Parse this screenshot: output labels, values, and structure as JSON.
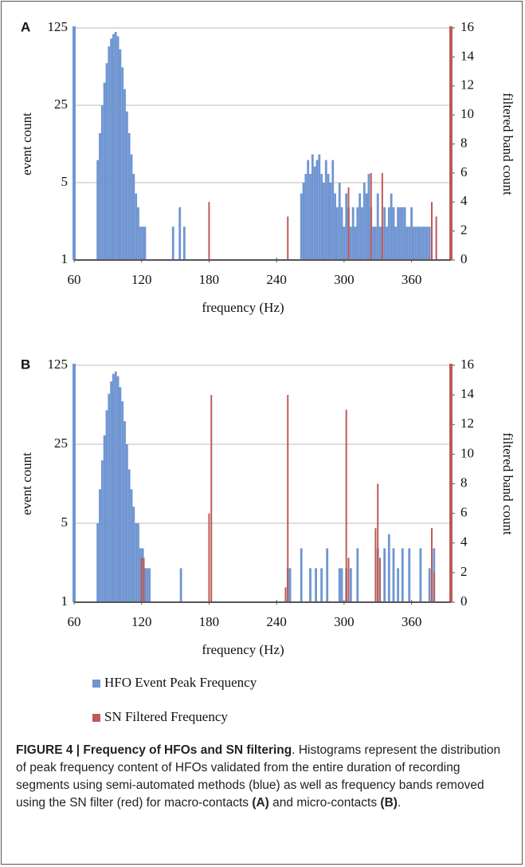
{
  "chart_data": [
    {
      "type": "bar",
      "label": "A",
      "ylabel": "event count",
      "y2label": "filtered band count",
      "xlabel": "frequency (Hz)",
      "yscale": "log",
      "grid": true,
      "xlim": [
        60,
        395
      ],
      "xticks": [
        60,
        120,
        180,
        240,
        300,
        360
      ],
      "ylim": [
        1,
        125
      ],
      "yticks": [
        1,
        5,
        25,
        125
      ],
      "y2lim": [
        0,
        16
      ],
      "y2ticks": [
        0,
        2,
        4,
        6,
        8,
        10,
        12,
        14,
        16
      ],
      "series": [
        {
          "name": "HFO Event Peak Frequency",
          "color": "#7096d2",
          "x": [
            81,
            83,
            85,
            87,
            89,
            91,
            93,
            95,
            97,
            99,
            101,
            103,
            105,
            107,
            109,
            111,
            113,
            115,
            117,
            119,
            121,
            123,
            148,
            154,
            158,
            262,
            264,
            266,
            268,
            270,
            272,
            274,
            276,
            278,
            280,
            282,
            284,
            286,
            288,
            290,
            292,
            294,
            296,
            298,
            300,
            302,
            304,
            306,
            308,
            310,
            312,
            314,
            316,
            318,
            320,
            322,
            324,
            326,
            328,
            330,
            332,
            334,
            336,
            338,
            340,
            342,
            344,
            346,
            348,
            350,
            352,
            354,
            356,
            358,
            360,
            362,
            364,
            366,
            368,
            370,
            372,
            374,
            376
          ],
          "values": [
            8,
            14,
            25,
            40,
            60,
            85,
            100,
            110,
            115,
            105,
            80,
            55,
            35,
            22,
            14,
            9,
            6,
            4,
            3,
            2,
            2,
            2,
            2,
            3,
            2,
            4,
            5,
            6,
            8,
            6,
            9,
            7,
            8,
            9,
            6,
            5,
            8,
            6,
            5,
            8,
            4,
            3,
            5,
            3,
            2,
            4,
            3,
            2,
            3,
            2,
            3,
            4,
            3,
            5,
            4,
            6,
            3,
            2,
            2,
            4,
            2,
            2,
            3,
            2,
            3,
            4,
            3,
            2,
            3,
            3,
            3,
            3,
            2,
            2,
            3,
            2,
            2,
            2,
            2,
            2,
            2,
            2,
            2
          ]
        },
        {
          "name": "SN Filtered Frequency",
          "color": "#be5a55",
          "axis": "y2",
          "x": [
            180,
            250,
            304,
            324,
            334,
            378,
            382
          ],
          "values": [
            4,
            3,
            5,
            6,
            6,
            4,
            3
          ]
        }
      ]
    },
    {
      "type": "bar",
      "label": "B",
      "ylabel": "event count",
      "y2label": "filtered band count",
      "xlabel": "frequency (Hz)",
      "yscale": "log",
      "grid": true,
      "xlim": [
        60,
        395
      ],
      "xticks": [
        60,
        120,
        180,
        240,
        300,
        360
      ],
      "ylim": [
        1,
        125
      ],
      "yticks": [
        1,
        5,
        25,
        125
      ],
      "y2lim": [
        0,
        16
      ],
      "y2ticks": [
        0,
        2,
        4,
        6,
        8,
        10,
        12,
        14,
        16
      ],
      "series": [
        {
          "name": "HFO Event Peak Frequency",
          "color": "#7096d2",
          "x": [
            81,
            83,
            85,
            87,
            89,
            91,
            93,
            95,
            97,
            99,
            101,
            103,
            105,
            107,
            109,
            111,
            113,
            115,
            117,
            119,
            121,
            123,
            125,
            127,
            155,
            250,
            252,
            262,
            270,
            275,
            280,
            285,
            296,
            298,
            302,
            306,
            312,
            330,
            336,
            340,
            344,
            348,
            352,
            358,
            368,
            376,
            380
          ],
          "values": [
            5,
            10,
            18,
            30,
            50,
            70,
            90,
            105,
            110,
            100,
            80,
            60,
            40,
            25,
            15,
            10,
            7,
            5,
            5,
            3,
            3,
            2,
            2,
            2,
            2,
            2,
            2,
            3,
            2,
            2,
            2,
            3,
            2,
            2,
            2,
            2,
            3,
            3,
            3,
            4,
            3,
            2,
            3,
            3,
            3,
            2,
            3
          ]
        },
        {
          "name": "SN Filtered Frequency",
          "color": "#be5a55",
          "axis": "y2",
          "x": [
            120,
            122,
            180,
            182,
            248,
            250,
            302,
            304,
            328,
            330,
            332,
            378,
            380
          ],
          "values": [
            3,
            3,
            6,
            14,
            1,
            14,
            13,
            3,
            5,
            8,
            3,
            5,
            2
          ]
        }
      ]
    }
  ],
  "caption": [
    {
      "text": "FIGURE 4 | Frequency of HFOs and SN filtering",
      "bold": true
    },
    {
      "text": ". Histograms represent the distribution of peak frequency content of HFOs validated from the entire duration of recording segments using semi-automated methods (blue) as well as frequency bands removed using the SN filter (red) for macro-contacts ",
      "bold": false
    },
    {
      "text": "(A)",
      "bold": true
    },
    {
      "text": " and micro-contacts ",
      "bold": false
    },
    {
      "text": "(B)",
      "bold": true
    },
    {
      "text": ".",
      "bold": false
    }
  ]
}
